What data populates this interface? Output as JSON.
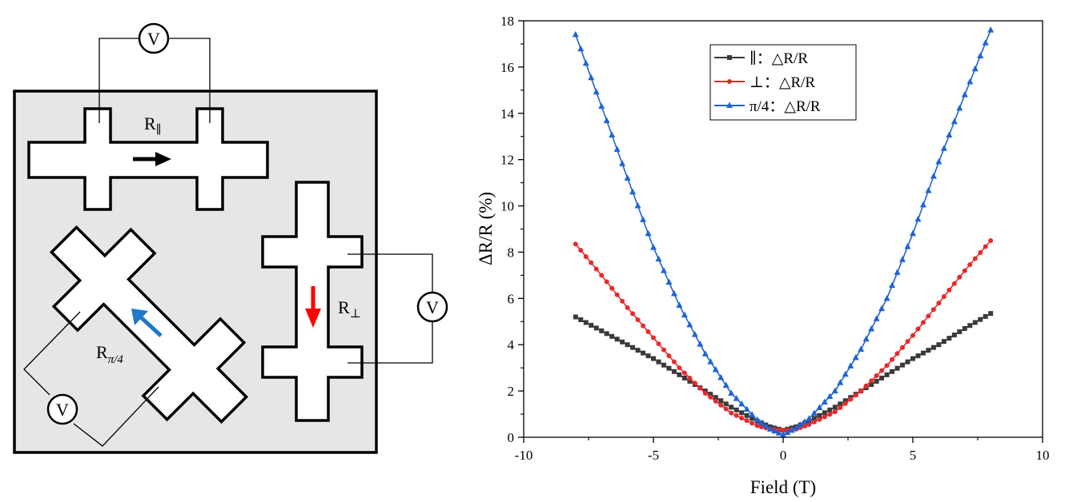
{
  "diagram": {
    "voltmeter_symbol": "V",
    "labels": {
      "parallel": {
        "base": "R",
        "sub": "∥"
      },
      "perpendicular": {
        "base": "R",
        "sub": "⊥"
      },
      "diagonal": {
        "base": "R",
        "sub": "π/4"
      }
    },
    "colors": {
      "chip": "#e6e6e6",
      "arrow_parallel": "#000000",
      "arrow_perpendicular": "#ff0000",
      "arrow_diagonal": "#1f78c8"
    }
  },
  "chart_data": {
    "type": "line",
    "xlabel": "Field (T)",
    "ylabel": "ΔR/R (%)",
    "xlim": [
      -10,
      10
    ],
    "ylim": [
      0,
      18
    ],
    "xticks": [
      "-10",
      "-5",
      "0",
      "5",
      "10"
    ],
    "yticks": [
      "0",
      "2",
      "4",
      "6",
      "8",
      "10",
      "12",
      "14",
      "16",
      "18"
    ],
    "grid": false,
    "legend_position": "top-center",
    "x": [
      -8.0,
      -7.0,
      -6.0,
      -5.0,
      -4.0,
      -3.0,
      -2.0,
      -1.0,
      -0.5,
      0.0,
      0.5,
      1.0,
      2.0,
      3.0,
      4.0,
      5.0,
      6.0,
      7.0,
      8.0
    ],
    "series": [
      {
        "name": "∥：△R/R",
        "color": "#3a3a3a",
        "marker": "square",
        "values": [
          5.2,
          4.6,
          4.0,
          3.4,
          2.7,
          2.0,
          1.3,
          0.7,
          0.45,
          0.3,
          0.45,
          0.7,
          1.3,
          2.0,
          2.7,
          3.4,
          4.0,
          4.7,
          5.35
        ]
      },
      {
        "name": "⊥：△R/R",
        "color": "#e8292a",
        "marker": "circle",
        "values": [
          8.35,
          7.0,
          5.6,
          4.3,
          3.0,
          1.9,
          1.05,
          0.5,
          0.35,
          0.3,
          0.35,
          0.55,
          1.1,
          2.0,
          3.1,
          4.4,
          5.8,
          7.2,
          8.5
        ]
      },
      {
        "name": "π/4：△R/R",
        "color": "#1f63d6",
        "marker": "triangle",
        "values": [
          17.4,
          14.3,
          11.2,
          8.2,
          5.7,
          3.6,
          1.9,
          0.75,
          0.35,
          0.1,
          0.4,
          0.8,
          2.0,
          3.8,
          6.0,
          8.8,
          11.9,
          14.8,
          17.6
        ]
      }
    ]
  }
}
